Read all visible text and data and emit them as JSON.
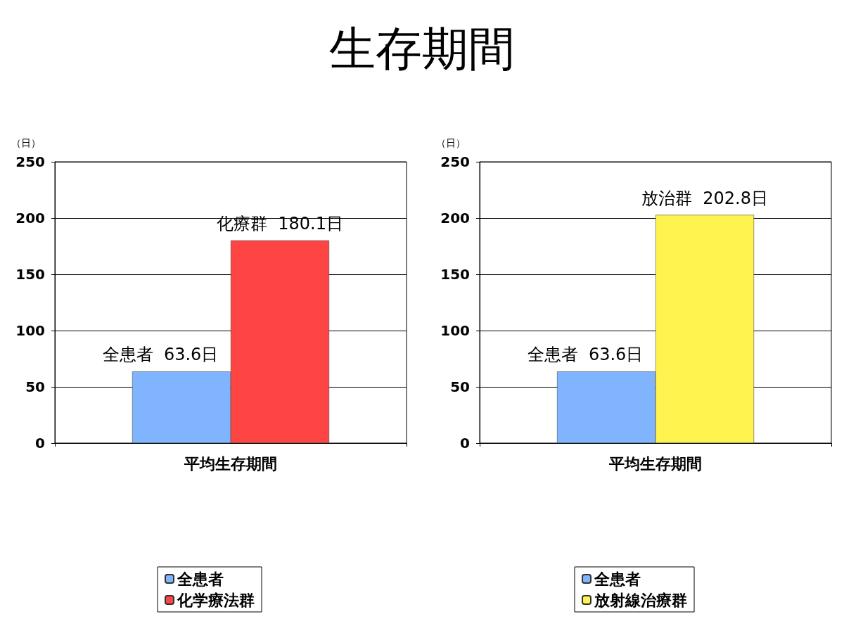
{
  "chart_data": [
    {
      "type": "bar",
      "title": "生存期間",
      "ylabel": "（日）",
      "categories": [
        "平均生存期間"
      ],
      "series": [
        {
          "name": "全患者",
          "color": "#80b4ff",
          "values": [
            63.6
          ],
          "value_labels": [
            "全患者  63.6日"
          ]
        },
        {
          "name": "化学療法群",
          "color": "#ff4444",
          "values": [
            180.1
          ],
          "value_labels": [
            "化療群  180.1日"
          ]
        }
      ],
      "ylim": [
        0,
        250
      ],
      "yticks": [
        0,
        50,
        100,
        150,
        200,
        250
      ],
      "grid": "y",
      "legend": "bottom"
    },
    {
      "type": "bar",
      "ylabel": "（日）",
      "categories": [
        "平均生存期間"
      ],
      "series": [
        {
          "name": "全患者",
          "color": "#80b4ff",
          "values": [
            63.6
          ],
          "value_labels": [
            "全患者  63.6日"
          ]
        },
        {
          "name": "放射線治療群",
          "color": "#fff44f",
          "values": [
            202.8
          ],
          "value_labels": [
            "放治群  202.8日"
          ]
        }
      ],
      "ylim": [
        0,
        250
      ],
      "yticks": [
        0,
        50,
        100,
        150,
        200,
        250
      ],
      "grid": "y",
      "legend": "bottom"
    }
  ]
}
